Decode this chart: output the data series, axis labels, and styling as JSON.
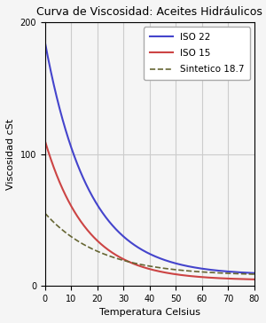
{
  "title": "Curva de Viscosidad: Aceites Hidráulicos",
  "xlabel": "Temperatura Celsius",
  "ylabel": "Viscosidad cSt",
  "xlim": [
    0,
    80
  ],
  "ylim": [
    0,
    200
  ],
  "xticks": [
    0,
    10,
    20,
    30,
    40,
    50,
    60,
    70,
    80
  ],
  "yticks": [
    0,
    100,
    200
  ],
  "series": [
    {
      "label": "ISO 22",
      "color": "#4444cc",
      "linestyle": "solid",
      "linewidth": 1.5,
      "v0": 185.0,
      "k": 0.072
    },
    {
      "label": "ISO 15",
      "color": "#cc4444",
      "linestyle": "solid",
      "linewidth": 1.5,
      "v0": 110.0,
      "k": 0.075
    },
    {
      "label": "Sintetico 18.7",
      "color": "#666633",
      "linestyle": "dashed",
      "linewidth": 1.2,
      "v0": 55.0,
      "k": 0.054
    }
  ],
  "grid_color": "#cccccc",
  "grid_linewidth": 0.8,
  "background_color": "#f5f5f5",
  "legend_loc": "upper right",
  "title_fontsize": 9,
  "label_fontsize": 8,
  "tick_fontsize": 7,
  "legend_fontsize": 7.5
}
